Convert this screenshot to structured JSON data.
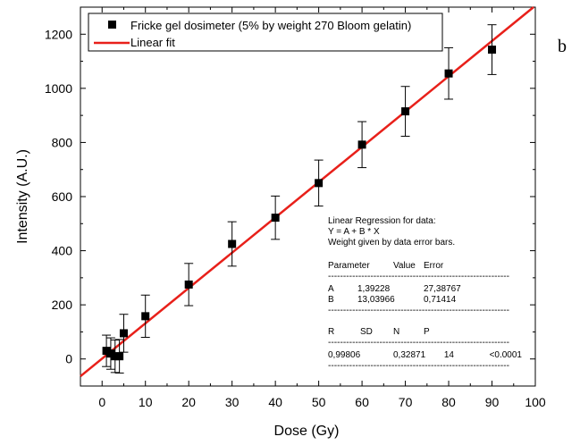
{
  "chart_data": {
    "type": "scatter",
    "panel_label": "b",
    "xlabel": "Dose (Gy)",
    "ylabel": "Intensity (A.U.)",
    "xlim": [
      -5,
      100
    ],
    "ylim": [
      -100,
      1300
    ],
    "x_ticks": [
      0,
      10,
      20,
      30,
      40,
      50,
      60,
      70,
      80,
      90,
      100
    ],
    "y_ticks": [
      0,
      200,
      400,
      600,
      800,
      1000,
      1200
    ],
    "grid": false,
    "legend_position": "top-left",
    "series": [
      {
        "name": "Fricke gel dosimeter (5% by weight 270 Bloom gelatin)",
        "marker": "square",
        "color": "#000000",
        "x": [
          1,
          2,
          3,
          4,
          5,
          10,
          20,
          30,
          40,
          50,
          60,
          70,
          80,
          90
        ],
        "y": [
          30,
          20,
          10,
          10,
          95,
          158,
          275,
          425,
          522,
          650,
          792,
          915,
          1055,
          1143
        ],
        "error": [
          58,
          58,
          60,
          62,
          70,
          78,
          78,
          82,
          80,
          85,
          85,
          92,
          95,
          92
        ]
      },
      {
        "name": "Linear fit",
        "type": "line",
        "color": "#e8201a",
        "intercept": 1.39228,
        "slope": 13.03966
      }
    ],
    "stats_box": {
      "header": [
        "Linear Regression for data:",
        "Y = A + B * X",
        "Weight given by data error bars."
      ],
      "param_header": [
        "Parameter",
        "Value",
        "Error"
      ],
      "params": [
        [
          "A",
          "1,39228",
          "27,38767"
        ],
        [
          "B",
          "13,03966",
          "0,71414"
        ]
      ],
      "fit_header": [
        "R",
        "SD",
        "N",
        "P"
      ],
      "fit_values": [
        "0,99806",
        "0,32871",
        "14",
        "<0.0001"
      ],
      "divider": "------------------------------------------------------------"
    }
  }
}
